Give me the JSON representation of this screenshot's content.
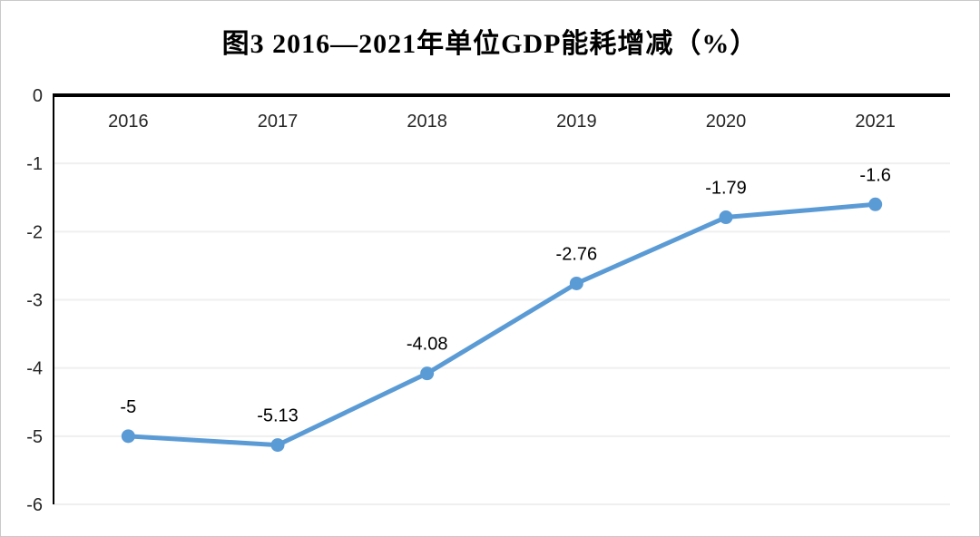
{
  "title": "图3 2016—2021年单位GDP能耗增减（%）",
  "chart_data": {
    "type": "line",
    "title": "图3 2016—2021年单位GDP能耗增减（%）",
    "categories": [
      "2016",
      "2017",
      "2018",
      "2019",
      "2020",
      "2021"
    ],
    "series": [
      {
        "name": "单位GDP能耗增减",
        "values": [
          -5,
          -5.13,
          -4.08,
          -2.76,
          -1.79,
          -1.6
        ]
      }
    ],
    "data_labels": [
      "-5",
      "-5.13",
      "-4.08",
      "-2.76",
      "-1.79",
      "-1.6"
    ],
    "y_ticks": [
      "0",
      "-1",
      "-2",
      "-3",
      "-4",
      "-5",
      "-6"
    ],
    "y_tick_values": [
      0,
      -1,
      -2,
      -3,
      -4,
      -5,
      -6
    ],
    "ylim": [
      -6,
      0
    ],
    "xlabel": "",
    "ylabel": "",
    "legend_position": "none",
    "grid": true,
    "line_color": "#5B9BD5",
    "marker_color": "#5B9BD5",
    "grid_color": "#EFEFEF",
    "axis_color": "#000000",
    "label_color": "#000000"
  }
}
